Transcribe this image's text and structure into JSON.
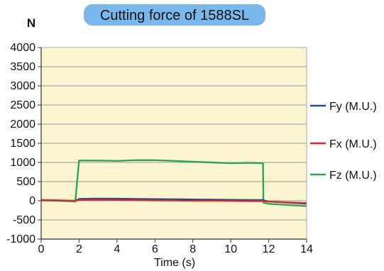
{
  "chart_data": {
    "type": "line",
    "title": "Cutting force of 1588SL",
    "unit_label": "N",
    "xlabel": "Time (s)",
    "ylabel": "",
    "xlim": [
      0,
      14
    ],
    "ylim": [
      -1000,
      4000
    ],
    "x_ticks": [
      "0",
      "2",
      "4",
      "6",
      "8",
      "10",
      "12",
      "14"
    ],
    "y_ticks": [
      "4000",
      "3500",
      "3000",
      "2500",
      "2000",
      "1500",
      "1000",
      "500",
      "0",
      "-500",
      "-1000"
    ],
    "grid": true,
    "legend_position": "right",
    "plot_background": "#fbf6cf",
    "title_background": "#7ab8ec",
    "series": [
      {
        "name": "Fy (M.U.)",
        "color": "#1f4e8c",
        "x": [
          0,
          1,
          1.8,
          2,
          3,
          4,
          5,
          6,
          7,
          8,
          9,
          10,
          11,
          11.7,
          12,
          13,
          14
        ],
        "y": [
          20,
          10,
          0,
          50,
          60,
          55,
          50,
          45,
          40,
          35,
          30,
          25,
          20,
          20,
          -20,
          -50,
          -80
        ]
      },
      {
        "name": "Fx (M.U.)",
        "color": "#e0262c",
        "x": [
          0,
          1,
          1.8,
          2,
          3,
          4,
          5,
          6,
          7,
          8,
          9,
          10,
          11,
          11.7,
          12,
          13,
          14
        ],
        "y": [
          20,
          10,
          0,
          20,
          25,
          20,
          15,
          10,
          5,
          0,
          0,
          -5,
          -10,
          -10,
          -20,
          -40,
          -60
        ]
      },
      {
        "name": "Fz (M.U.)",
        "color": "#2ea84f",
        "x": [
          0,
          1,
          1.8,
          2,
          3,
          4,
          5,
          6,
          7,
          8,
          9,
          10,
          11,
          11.7,
          11.72,
          12,
          13,
          14
        ],
        "y": [
          10,
          0,
          -20,
          1050,
          1050,
          1040,
          1060,
          1060,
          1040,
          1020,
          1000,
          980,
          990,
          980,
          -50,
          -80,
          -110,
          -140
        ]
      }
    ]
  }
}
